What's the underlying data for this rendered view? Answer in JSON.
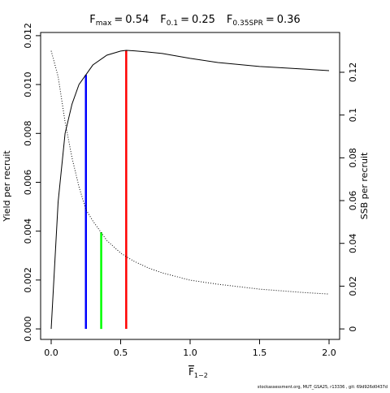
{
  "chart_data": {
    "type": "line",
    "title_parts": [
      {
        "symbol": "F",
        "subscript": "max",
        "relation": "=",
        "value": 0.54,
        "color": "#ff0000",
        "top": 0.0114
      },
      {
        "symbol": "F",
        "subscript": "0.1",
        "relation": "=",
        "value": 0.25,
        "color": "#0000ff",
        "top": 0.0104
      },
      {
        "symbol": "F",
        "subscript": "0.35SPR",
        "relation": "=",
        "value": 0.36,
        "color": "#00ff00",
        "top": 0.0452,
        "axis": "y2"
      }
    ],
    "x_label": {
      "symbol": "F",
      "subscript": "1−2"
    },
    "y_label": "Yield per recruit",
    "y2_label": "SSB per recruit",
    "footer": "stockassessment.org, MUT_GSA25, r13336 , git: 69d926d0437d",
    "x": [
      0,
      0.05,
      0.1,
      0.15,
      0.2,
      0.25,
      0.3,
      0.4,
      0.5,
      0.54,
      0.6,
      0.7,
      0.8,
      1.0,
      1.2,
      1.5,
      1.8,
      2.0
    ],
    "series": [
      {
        "name": "Yield per recruit",
        "color": "#000000",
        "style": "solid",
        "values": [
          0,
          0.0052,
          0.008,
          0.0092,
          0.01,
          0.0104,
          0.0108,
          0.0112,
          0.01137,
          0.0114,
          0.01138,
          0.01133,
          0.01127,
          0.01107,
          0.0109,
          0.01074,
          0.01064,
          0.01057
        ]
      },
      {
        "name": "SSB per recruit",
        "color": "#000000",
        "style": "dotted",
        "axis": "y2",
        "values": [
          0.13,
          0.118,
          0.0968,
          0.08,
          0.0665,
          0.0558,
          0.0505,
          0.0414,
          0.0355,
          0.0338,
          0.0315,
          0.0285,
          0.0262,
          0.0228,
          0.0209,
          0.0186,
          0.0171,
          0.0163
        ]
      }
    ],
    "xlim": [
      -0.076,
      2.076
    ],
    "xticks": [
      {
        "value": 0,
        "label": "0.0"
      },
      {
        "value": 0.5,
        "label": "0.5"
      },
      {
        "value": 1,
        "label": "1.0"
      },
      {
        "value": 1.5,
        "label": "1.5"
      },
      {
        "value": 2,
        "label": "2.0"
      }
    ],
    "ylim": [
      -0.00043,
      0.01213
    ],
    "yticks": [
      {
        "value": 0,
        "label": "0.000"
      },
      {
        "value": 0.002,
        "label": "0.002"
      },
      {
        "value": 0.004,
        "label": "0.004"
      },
      {
        "value": 0.006,
        "label": "0.006"
      },
      {
        "value": 0.008,
        "label": "0.008"
      },
      {
        "value": 0.01,
        "label": "0.010"
      },
      {
        "value": 0.012,
        "label": "0.012"
      }
    ],
    "y2lim": [
      -0.0049,
      0.1386
    ],
    "y2ticks": [
      0,
      0.02,
      0.04,
      0.06,
      0.08,
      0.1,
      0.12
    ]
  }
}
